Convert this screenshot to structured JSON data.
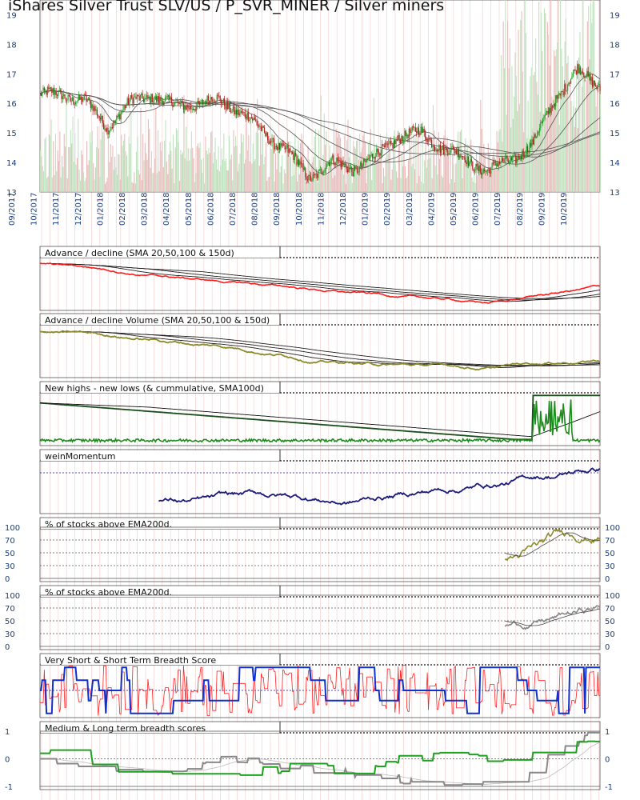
{
  "title": "iShares Silver Trust SLV/US / P_SVR_MINER / Silver miners",
  "chart_data": {
    "type": "line",
    "price_axis": {
      "ticks": [
        13,
        14,
        15,
        16,
        17,
        18,
        19
      ],
      "ylim": [
        13,
        19.5
      ]
    },
    "months": [
      "09/2017",
      "10/2017",
      "11/2017",
      "12/2017",
      "01/2018",
      "02/2018",
      "03/2018",
      "04/2018",
      "05/2018",
      "06/2018",
      "07/2018",
      "08/2018",
      "09/2018",
      "10/2018",
      "11/2018",
      "12/2018",
      "01/2019",
      "02/2019",
      "03/2019",
      "04/2019",
      "05/2019",
      "06/2019",
      "07/2019",
      "08/2019",
      "09/2019",
      "10/2019"
    ],
    "price_close_monthly": [
      16.3,
      16.3,
      16.1,
      15.2,
      16.0,
      16.3,
      15.9,
      16.0,
      16.1,
      15.7,
      15.0,
      14.4,
      13.5,
      14.0,
      13.8,
      14.2,
      14.9,
      15.0,
      14.5,
      14.1,
      13.7,
      14.1,
      14.6,
      16.2,
      17.1,
      16.6
    ],
    "panels": [
      {
        "title": "Advance / decline (SMA 20,50,100 & 150d)"
      },
      {
        "title": "Advance / decline Volume (SMA 20,50,100 & 150d)"
      },
      {
        "title": "New highs - new lows (& cummulative, SMA100d)"
      },
      {
        "title": "weinMomentum"
      },
      {
        "title": "% of stocks above EMA200d.",
        "yticks": [
          "100",
          "70",
          "50",
          "30",
          "0"
        ]
      },
      {
        "title": "% of stocks above EMA200d.",
        "yticks": [
          "100",
          "70",
          "50",
          "30",
          "0"
        ]
      },
      {
        "title": "Very Short & Short Term Breadth Score"
      },
      {
        "title": "Medium & Long term breadth scores",
        "yticks": [
          "1",
          "0",
          "-1"
        ]
      }
    ],
    "colors": {
      "up": "#2a9d2a",
      "down": "#b22222",
      "ad": "#ff1a1a",
      "adv": "#8b8b2a",
      "nhnl": "#1a8c1a",
      "momentum": "#1a1a7a",
      "pct1": "#8b8b2a",
      "pct2": "#888888",
      "short": "#ff2020",
      "vshort": "#1030d0",
      "medium": "#20a020",
      "long": "#888888"
    }
  }
}
